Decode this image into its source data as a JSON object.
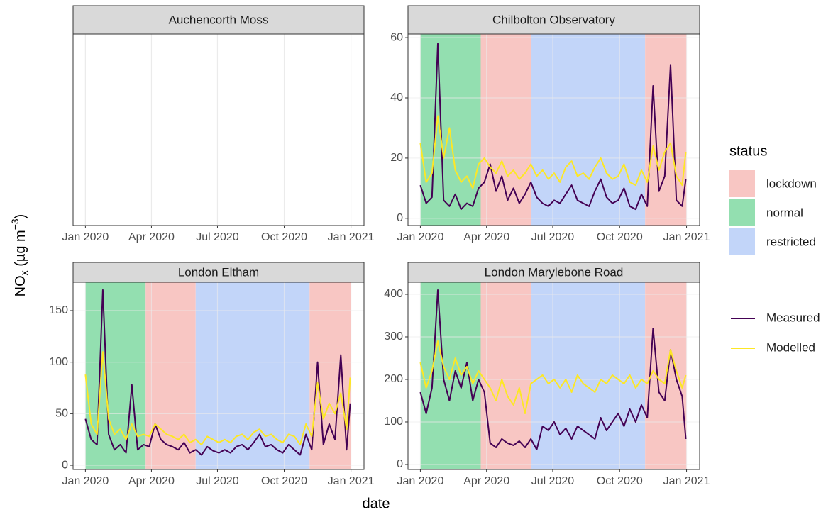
{
  "chart_data": [
    {
      "type": "line",
      "title": "Auchencorth Moss",
      "x": [],
      "series": [],
      "bands": [],
      "xlim": [
        -17,
        384
      ],
      "xticks": [
        {
          "value": 0,
          "label": "Jan 2020"
        },
        {
          "value": 91,
          "label": "Apr 2020"
        },
        {
          "value": 182,
          "label": "Jul 2020"
        },
        {
          "value": 274,
          "label": "Oct 2020"
        },
        {
          "value": 366,
          "label": "Jan 2021"
        }
      ],
      "grid": true
    },
    {
      "type": "line",
      "title": "Chilbolton Observatory",
      "x": [
        0,
        8,
        16,
        24,
        32,
        40,
        48,
        56,
        64,
        72,
        80,
        88,
        96,
        104,
        112,
        120,
        128,
        136,
        144,
        152,
        160,
        168,
        176,
        184,
        192,
        200,
        208,
        216,
        224,
        232,
        240,
        248,
        256,
        264,
        272,
        280,
        288,
        296,
        304,
        312,
        320,
        328,
        336,
        344,
        352,
        360,
        365
      ],
      "series": [
        {
          "name": "Measured",
          "color": "#440154",
          "values": [
            11,
            5,
            7,
            58,
            6,
            4,
            8,
            3,
            5,
            4,
            10,
            12,
            18,
            9,
            14,
            6,
            10,
            5,
            8,
            12,
            7,
            5,
            4,
            6,
            5,
            8,
            11,
            6,
            5,
            4,
            9,
            13,
            7,
            5,
            6,
            10,
            4,
            3,
            8,
            4,
            44,
            9,
            14,
            51,
            6,
            4,
            13
          ]
        },
        {
          "name": "Modelled",
          "color": "#fde725",
          "values": [
            25,
            12,
            15,
            34,
            20,
            30,
            16,
            12,
            14,
            10,
            18,
            20,
            17,
            15,
            19,
            14,
            16,
            13,
            15,
            18,
            14,
            16,
            13,
            15,
            12,
            17,
            19,
            14,
            15,
            13,
            17,
            20,
            15,
            13,
            14,
            18,
            12,
            11,
            16,
            12,
            24,
            16,
            22,
            25,
            14,
            11,
            22
          ]
        }
      ],
      "bands": [
        {
          "status": "normal",
          "start": 0,
          "end": 83
        },
        {
          "status": "lockdown",
          "start": 83,
          "end": 152
        },
        {
          "status": "restricted",
          "start": 152,
          "end": 309
        },
        {
          "status": "lockdown",
          "start": 309,
          "end": 366
        }
      ],
      "xlim": [
        -17,
        384
      ],
      "ylim": [
        -2.4,
        61.2
      ],
      "xticks": [
        {
          "value": 0,
          "label": "Jan 2020"
        },
        {
          "value": 91,
          "label": "Apr 2020"
        },
        {
          "value": 182,
          "label": "Jul 2020"
        },
        {
          "value": 274,
          "label": "Oct 2020"
        },
        {
          "value": 366,
          "label": "Jan 2021"
        }
      ],
      "yticks": [
        0,
        20,
        40,
        60
      ],
      "grid": true
    },
    {
      "type": "line",
      "title": "London Eltham",
      "x": [
        0,
        8,
        16,
        24,
        32,
        40,
        48,
        56,
        64,
        72,
        80,
        88,
        96,
        104,
        112,
        120,
        128,
        136,
        144,
        152,
        160,
        168,
        176,
        184,
        192,
        200,
        208,
        216,
        224,
        232,
        240,
        248,
        256,
        264,
        272,
        280,
        288,
        296,
        304,
        312,
        320,
        328,
        336,
        344,
        352,
        360,
        365
      ],
      "series": [
        {
          "name": "Measured",
          "color": "#440154",
          "values": [
            45,
            25,
            20,
            170,
            30,
            15,
            20,
            12,
            78,
            15,
            20,
            18,
            40,
            25,
            20,
            18,
            15,
            22,
            12,
            15,
            10,
            18,
            14,
            12,
            15,
            12,
            18,
            20,
            15,
            22,
            30,
            18,
            20,
            15,
            12,
            20,
            15,
            10,
            30,
            15,
            100,
            20,
            40,
            25,
            107,
            15,
            60
          ]
        },
        {
          "name": "Modelled",
          "color": "#fde725",
          "values": [
            88,
            40,
            30,
            110,
            45,
            30,
            35,
            25,
            40,
            28,
            30,
            28,
            40,
            35,
            30,
            28,
            25,
            30,
            22,
            25,
            20,
            28,
            25,
            22,
            25,
            22,
            28,
            30,
            25,
            32,
            35,
            28,
            30,
            25,
            22,
            30,
            28,
            20,
            40,
            28,
            80,
            45,
            60,
            50,
            70,
            35,
            85
          ]
        }
      ],
      "bands": [
        {
          "status": "normal",
          "start": 0,
          "end": 83
        },
        {
          "status": "lockdown",
          "start": 83,
          "end": 152
        },
        {
          "status": "restricted",
          "start": 152,
          "end": 309
        },
        {
          "status": "lockdown",
          "start": 309,
          "end": 366
        }
      ],
      "xlim": [
        -17,
        384
      ],
      "ylim": [
        -4.1,
        177.5
      ],
      "xticks": [
        {
          "value": 0,
          "label": "Jan 2020"
        },
        {
          "value": 91,
          "label": "Apr 2020"
        },
        {
          "value": 182,
          "label": "Jul 2020"
        },
        {
          "value": 274,
          "label": "Oct 2020"
        },
        {
          "value": 366,
          "label": "Jan 2021"
        }
      ],
      "yticks": [
        0,
        50,
        100,
        150
      ],
      "grid": true
    },
    {
      "type": "line",
      "title": "London Marylebone Road",
      "x": [
        0,
        8,
        16,
        24,
        32,
        40,
        48,
        56,
        64,
        72,
        80,
        88,
        96,
        104,
        112,
        120,
        128,
        136,
        144,
        152,
        160,
        168,
        176,
        184,
        192,
        200,
        208,
        216,
        224,
        232,
        240,
        248,
        256,
        264,
        272,
        280,
        288,
        296,
        304,
        312,
        320,
        328,
        336,
        344,
        352,
        360,
        365
      ],
      "series": [
        {
          "name": "Measured",
          "color": "#440154",
          "values": [
            170,
            120,
            180,
            410,
            200,
            150,
            220,
            180,
            240,
            150,
            200,
            170,
            50,
            40,
            60,
            50,
            45,
            55,
            40,
            60,
            35,
            90,
            80,
            100,
            70,
            85,
            60,
            90,
            80,
            70,
            60,
            110,
            80,
            100,
            120,
            90,
            130,
            100,
            140,
            110,
            320,
            170,
            150,
            270,
            200,
            160,
            60
          ]
        },
        {
          "name": "Modelled",
          "color": "#fde725",
          "values": [
            240,
            180,
            220,
            290,
            230,
            200,
            250,
            210,
            230,
            190,
            220,
            200,
            180,
            150,
            200,
            160,
            140,
            180,
            120,
            190,
            200,
            210,
            190,
            200,
            180,
            200,
            170,
            210,
            190,
            180,
            170,
            200,
            190,
            210,
            200,
            190,
            210,
            180,
            200,
            190,
            220,
            200,
            190,
            270,
            220,
            180,
            210
          ]
        }
      ],
      "bands": [
        {
          "status": "normal",
          "start": 0,
          "end": 83
        },
        {
          "status": "lockdown",
          "start": 83,
          "end": 152
        },
        {
          "status": "restricted",
          "start": 152,
          "end": 309
        },
        {
          "status": "lockdown",
          "start": 309,
          "end": 366
        }
      ],
      "xlim": [
        -17,
        384
      ],
      "ylim": [
        -11.7,
        428.3
      ],
      "xticks": [
        {
          "value": 0,
          "label": "Jan 2020"
        },
        {
          "value": 91,
          "label": "Apr 2020"
        },
        {
          "value": 182,
          "label": "Jul 2020"
        },
        {
          "value": 274,
          "label": "Oct 2020"
        },
        {
          "value": 366,
          "label": "Jan 2021"
        }
      ],
      "yticks": [
        0,
        100,
        200,
        300,
        400
      ],
      "grid": true
    }
  ],
  "x_label": "date",
  "y_label": [
    "NO",
    "x",
    " (µg m",
    "−3",
    ")"
  ],
  "status": {
    "title": "status",
    "levels": [
      {
        "name": "lockdown",
        "color": "#f8c6c3"
      },
      {
        "name": "normal",
        "color": "#93dfb0"
      },
      {
        "name": "restricted",
        "color": "#c2d5f9"
      }
    ]
  }
}
